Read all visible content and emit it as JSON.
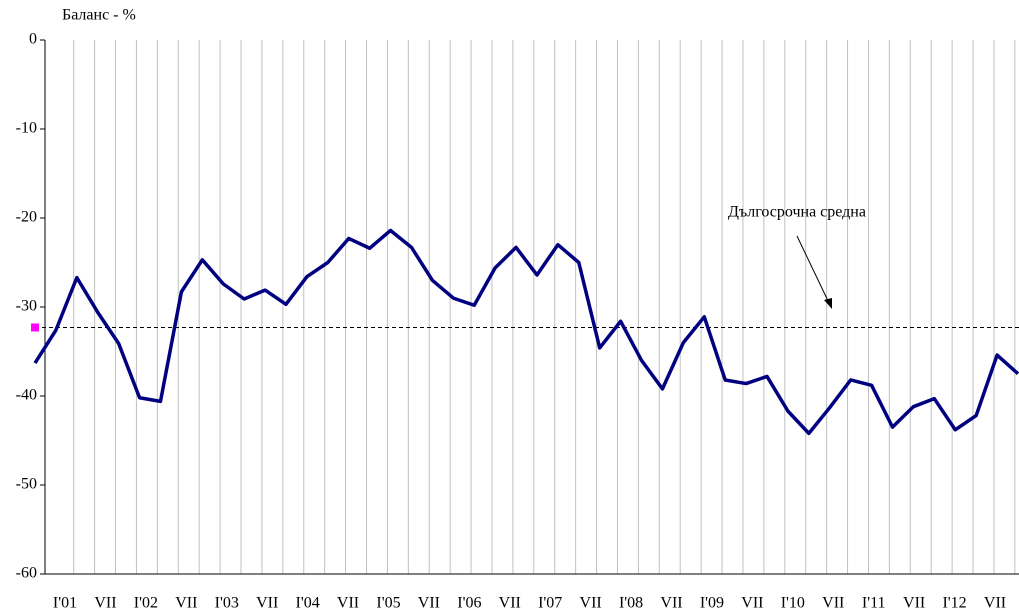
{
  "chart_data": {
    "type": "line",
    "y_axis_label": "Баланс - %",
    "categories": [
      "I'01",
      null,
      "VII",
      null,
      "I'02",
      null,
      "VII",
      null,
      "I'03",
      null,
      "VII",
      null,
      "I'04",
      null,
      "VII",
      null,
      "I'05",
      null,
      "VII",
      null,
      "I'06",
      null,
      "VII",
      null,
      "I'07",
      null,
      "VII",
      null,
      "I'08",
      null,
      "VII",
      null,
      "I'09",
      null,
      "VII",
      null,
      "I'10",
      null,
      "VII",
      null,
      "I'11",
      null,
      "VII",
      null,
      "I'12",
      null,
      "VII",
      null
    ],
    "series": [
      {
        "color": "#000080",
        "values": [
          -36.3,
          -32.6,
          -26.7,
          -30.6,
          -34.1,
          -40.2,
          -40.6,
          -28.3,
          -24.7,
          -27.4,
          -29.1,
          -28.1,
          -29.7,
          -26.6,
          -25.0,
          -22.3,
          -23.4,
          -21.4,
          -23.3,
          -27.0,
          -29.0,
          -29.8,
          -25.6,
          -23.3,
          -26.4,
          -23.0,
          -25.0,
          -34.6,
          -31.6,
          -36.0,
          -39.2,
          -34.0,
          -31.1,
          -38.2,
          -38.6,
          -37.8,
          -41.7,
          -44.2,
          -41.3,
          -38.2,
          -38.8,
          -43.5,
          -41.2,
          -40.3,
          -43.8,
          -42.2,
          -35.4,
          -37.5
        ]
      }
    ],
    "long_term_average": {
      "label": "Дългосрочна средна",
      "value": -32.3,
      "color": "#000000",
      "marker_color": "#ff00ff"
    },
    "ylim": [
      -60,
      0
    ],
    "yticks": [
      0,
      -10,
      -20,
      -30,
      -40,
      -50,
      -60
    ],
    "grid": "x"
  }
}
